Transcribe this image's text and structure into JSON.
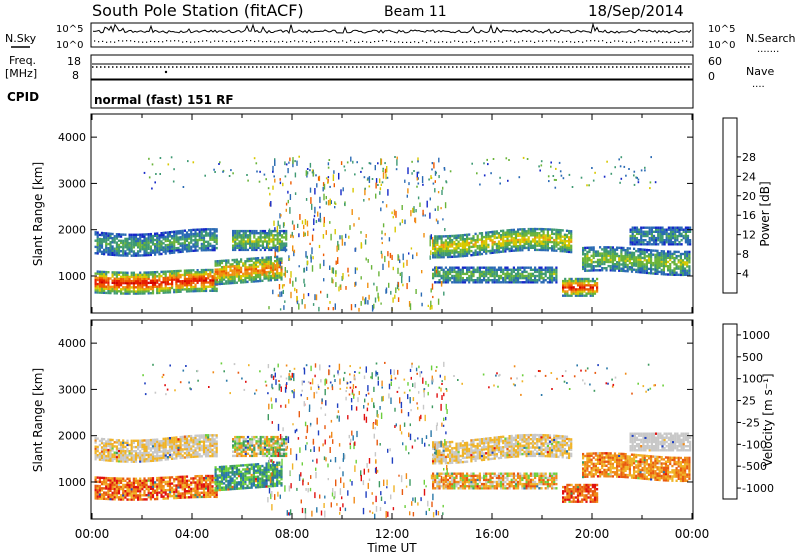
{
  "header": {
    "station": "South Pole Station (fitACF)",
    "beam": "Beam 11",
    "date": "18/Sep/2014"
  },
  "noise_panel": {
    "left_label": "N.Sky",
    "right_label": "N.Search",
    "tick_top": "10^5",
    "tick_bottom": "10^0",
    "right_legend_mark": "......."
  },
  "freq_panel": {
    "left_label_1": "Freq.",
    "left_label_2": "[MHz]",
    "right_label": "Nave",
    "tick_left_top": "18",
    "tick_left_bottom": "8",
    "tick_right_top": "60",
    "tick_right_bottom": "0",
    "right_legend_mark": "...."
  },
  "cpid_panel": {
    "left_label": "CPID",
    "value": "normal (fast) 151 RF"
  },
  "chart_data": [
    {
      "type": "heatmap",
      "panel": "power",
      "ylabel": "Slant Range [km]",
      "ylim": [
        200,
        4500
      ],
      "yticks": [
        1000,
        2000,
        3000,
        4000
      ],
      "colorbar_label": "Power [dB]",
      "colorbar_ticks": [
        "4",
        "8",
        "12",
        "16",
        "20",
        "24",
        "28"
      ],
      "colorbar_colors": [
        "#1428c8",
        "#2a6ab4",
        "#3f9a73",
        "#6ab43a",
        "#d8c800",
        "#f09010",
        "#ee5a00",
        "#e81e00",
        "#d00000"
      ]
    },
    {
      "type": "heatmap",
      "panel": "velocity",
      "ylabel": "Slant Range [km]",
      "ylim": [
        200,
        4500
      ],
      "yticks": [
        1000,
        2000,
        3000,
        4000
      ],
      "colorbar_label": "Velocity [m s⁻¹]",
      "colorbar_ticks": [
        "1000",
        "500",
        "100",
        "25",
        "-25",
        "-100",
        "-500",
        "-1000"
      ],
      "colorbar_colors": [
        "#1f3fc0",
        "#2a78a8",
        "#3e9a60",
        "#6ccf3c",
        "#c8c8c8",
        "#f0b428",
        "#f08a18",
        "#e85a10",
        "#e01010"
      ]
    }
  ],
  "time_axis": {
    "label": "Time UT",
    "ticks": [
      "00:00",
      "04:00",
      "08:00",
      "12:00",
      "16:00",
      "20:00",
      "00:00"
    ]
  }
}
